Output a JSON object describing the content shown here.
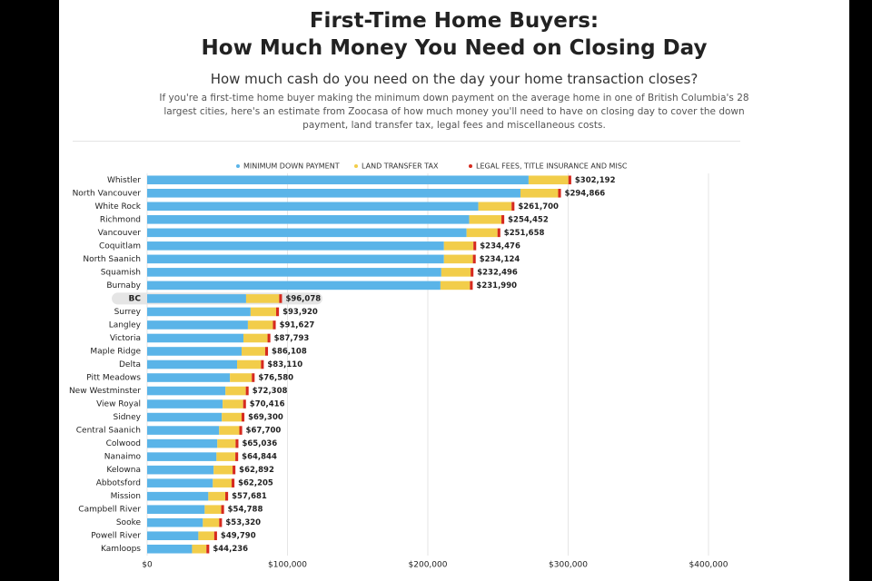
{
  "chart_data": {
    "type": "stacked_bar_horizontal",
    "title": "First-Time Home Buyers:",
    "title_line2": "How Much Money You Need on Closing Day",
    "subtitle": "How much cash do you need on the day your home transaction closes?",
    "description": "If you're a first-time home buyer making the minimum down payment on the average home in one of British Columbia's 28 largest cities, here's an estimate from Zoocasa of how much money you'll need to have on closing day to cover the down payment, land transfer tax, legal fees and miscellaneous costs.",
    "categories": [
      "Whistler",
      "North Vancouver",
      "White Rock",
      "Richmond",
      "Vancouver",
      "Coquitlam",
      "North Saanich",
      "Squamish",
      "Burnaby",
      "BC",
      "Surrey",
      "Langley",
      "Victoria",
      "Maple Ridge",
      "Delta",
      "Pitt Meadows",
      "New Westminster",
      "View Royal",
      "Sidney",
      "Central Saanich",
      "Colwood",
      "Nanaimo",
      "Kelowna",
      "Abbotsford",
      "Mission",
      "Campbell River",
      "Sooke",
      "Powell River",
      "Kamloops"
    ],
    "highlight_index": 9,
    "series": [
      {
        "name": "MINIMUM DOWN PAYMENT",
        "color": "#5ab4e8",
        "values": [
          271800,
          266000,
          236000,
          229500,
          227600,
          211500,
          211500,
          209600,
          209000,
          70500,
          73700,
          71800,
          68600,
          67300,
          64100,
          59000,
          55800,
          53800,
          53200,
          51300,
          50000,
          49400,
          47400,
          46800,
          43600,
          41000,
          39700,
          36500,
          32000
        ]
      },
      {
        "name": "LAND TRANSFER TAX",
        "color": "#f2cd4a",
        "values": [
          28392,
          26866,
          23700,
          22952,
          22058,
          20976,
          20624,
          20896,
          20990,
          23578,
          18220,
          17827,
          17193,
          16808,
          17010,
          15580,
          14508,
          14616,
          14100,
          14400,
          13036,
          13444,
          13492,
          13405,
          12081,
          11788,
          11620,
          11290,
          10236
        ]
      },
      {
        "name": "LEGAL FEES, TITLE INSURANCE AND MISC",
        "color": "#d62a1e",
        "values": [
          2000,
          2000,
          2000,
          2000,
          2000,
          2000,
          2000,
          2000,
          2000,
          2000,
          2000,
          2000,
          2000,
          2000,
          2000,
          2000,
          2000,
          2000,
          2000,
          2000,
          2000,
          2000,
          2000,
          2000,
          2000,
          2000,
          2000,
          2000,
          2000
        ]
      }
    ],
    "totals": [
      302192,
      294866,
      261700,
      254452,
      251658,
      234476,
      234124,
      232496,
      231990,
      96078,
      93920,
      91627,
      87793,
      86108,
      83110,
      76580,
      72308,
      70416,
      69300,
      67700,
      65036,
      64844,
      62892,
      62205,
      57681,
      54788,
      53320,
      49790,
      44236
    ],
    "total_labels": [
      "$302,192",
      "$294,866",
      "$261,700",
      "$254,452",
      "$251,658",
      "$234,476",
      "$234,124",
      "$232,496",
      "$231,990",
      "$96,078",
      "$93,920",
      "$91,627",
      "$87,793",
      "$86,108",
      "$83,110",
      "$76,580",
      "$72,308",
      "$70,416",
      "$69,300",
      "$67,700",
      "$65,036",
      "$64,844",
      "$62,892",
      "$62,205",
      "$57,681",
      "$54,788",
      "$53,320",
      "$49,790",
      "$44,236"
    ],
    "xlim": [
      0,
      400000
    ],
    "xticks": [
      {
        "value": 0,
        "label": "$0"
      },
      {
        "value": 100000,
        "label": "$100,000"
      },
      {
        "value": 200000,
        "label": "$200,000"
      },
      {
        "value": 300000,
        "label": "$300,000"
      },
      {
        "value": 400000,
        "label": "$400,000"
      }
    ],
    "grid": true
  }
}
